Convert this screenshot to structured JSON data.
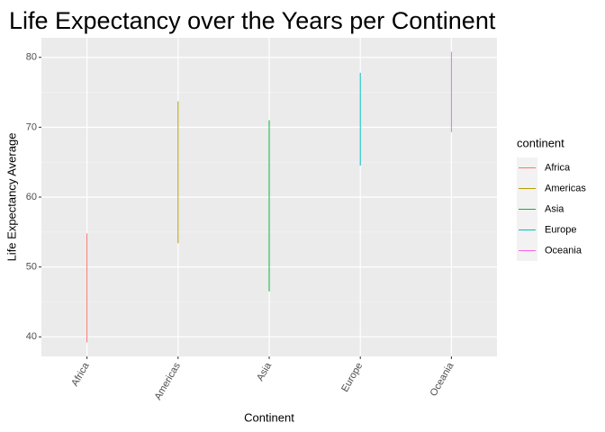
{
  "chart_data": {
    "type": "range",
    "title": "Life Expectancy over the Years per Continent",
    "x_label": "Continent",
    "y_label": "Life Expectancy Average",
    "legend_title": "continent",
    "categories": [
      "Africa",
      "Americas",
      "Asia",
      "Europe",
      "Oceania"
    ],
    "low": [
      39.2,
      53.4,
      46.5,
      64.5,
      69.3
    ],
    "high": [
      54.8,
      73.7,
      71.0,
      77.8,
      80.8
    ],
    "colors": [
      "#F8766D",
      "#B79F00",
      "#00BA38",
      "#00BFC4",
      "#F564E3"
    ],
    "ylim": [
      37.2,
      82.8
    ],
    "yticks": [
      40,
      50,
      60,
      70,
      80
    ],
    "grid": true,
    "legend": "right"
  }
}
